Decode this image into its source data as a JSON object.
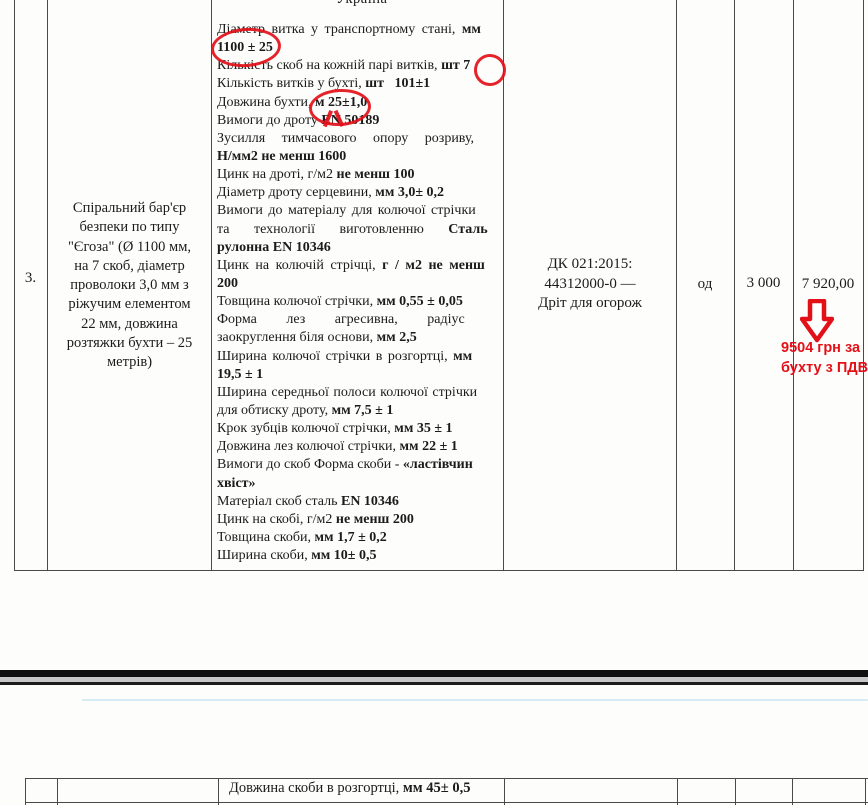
{
  "document": {
    "partial_top_word": "Україна",
    "row": {
      "number": "3.",
      "item_name_lines": [
        "Спіральний бар'єр",
        "безпеки по типу",
        "\"Єгоза\" (Ø 1100 мм,",
        "на 7 скоб, діаметр",
        "проволоки 3,0 мм з",
        "ріжучим елементом",
        "22 мм, довжина",
        "розтяжки бухти – 25",
        "метрів)"
      ],
      "spec_lines": [
        {
          "segs": [
            {
              "t": "Діаметр витка у транспортному стані, ",
              "b": false
            },
            {
              "t": "мм",
              "b": true
            }
          ],
          "ws": 3
        },
        {
          "segs": [
            {
              "t": "1100 ± 25",
              "b": true
            }
          ]
        },
        {
          "segs": [
            {
              "t": "Кількість скоб на кожній парі витків, ",
              "b": false
            },
            {
              "t": "шт 7",
              "b": true
            }
          ]
        },
        {
          "segs": [
            {
              "t": "Кількість витків у бухті, ",
              "b": false
            },
            {
              "t": "шт   101±1",
              "b": true
            }
          ]
        },
        {
          "segs": [
            {
              "t": "Довжина бухти, ",
              "b": false
            },
            {
              "t": "м 25±1,0",
              "b": true
            }
          ]
        },
        {
          "segs": [
            {
              "t": "Вимоги до дроту ",
              "b": false
            },
            {
              "t": "EN 50189",
              "b": true
            }
          ]
        },
        {
          "segs": [
            {
              "t": "Зусилля тимчасового опору розриву,",
              "b": false
            }
          ],
          "ws": 13
        },
        {
          "segs": [
            {
              "t": "Н/мм2 не менш 1600",
              "b": true
            }
          ]
        },
        {
          "segs": [
            {
              "t": "Цинк на дроті, г/м2 ",
              "b": false
            },
            {
              "t": "не менш 100",
              "b": true
            }
          ]
        },
        {
          "segs": [
            {
              "t": "Діаметр дроту серцевини, ",
              "b": false
            },
            {
              "t": "мм 3,0± 0,2",
              "b": true
            }
          ]
        },
        {
          "segs": [
            {
              "t": "Вимоги до матеріалу для колючої стрічки",
              "b": false
            }
          ],
          "ws": 2
        },
        {
          "segs": [
            {
              "t": "та технології виготовленню ",
              "b": false
            },
            {
              "t": "Сталь",
              "b": true
            }
          ],
          "ws": 21
        },
        {
          "segs": [
            {
              "t": "рулонна EN 10346",
              "b": true
            }
          ]
        },
        {
          "segs": [
            {
              "t": "Цинк на колючій стрічці, ",
              "b": false
            },
            {
              "t": "г / м2 не менш",
              "b": true
            }
          ],
          "ws": 3
        },
        {
          "segs": [
            {
              "t": "200",
              "b": true
            }
          ]
        },
        {
          "segs": [
            {
              "t": "Товщина колючої стрічки, ",
              "b": false
            },
            {
              "t": "мм 0,55 ± 0,05",
              "b": true
            }
          ]
        },
        {
          "segs": [
            {
              "t": "Форма лез агресивна, радіус",
              "b": false
            }
          ],
          "ws": 26
        },
        {
          "segs": [
            {
              "t": "заокруглення біля основи, ",
              "b": false
            },
            {
              "t": "мм 2,5",
              "b": true
            }
          ]
        },
        {
          "segs": [
            {
              "t": "Ширина колючої стрічки в розгортці, ",
              "b": false
            },
            {
              "t": "мм",
              "b": true
            }
          ],
          "ws": 2
        },
        {
          "segs": [
            {
              "t": "19,5 ± 1",
              "b": true
            }
          ]
        },
        {
          "segs": [
            {
              "t": "Ширина середньої полоси колючої стрічки",
              "b": false
            }
          ],
          "ws": 1
        },
        {
          "segs": [
            {
              "t": "для обтиску дроту, ",
              "b": false
            },
            {
              "t": "мм 7,5 ± 1",
              "b": true
            }
          ]
        },
        {
          "segs": [
            {
              "t": "Крок зубців колючої стрічки, ",
              "b": false
            },
            {
              "t": "мм 35 ± 1",
              "b": true
            }
          ]
        },
        {
          "segs": [
            {
              "t": "Довжина лез колючої стрічки, ",
              "b": false
            },
            {
              "t": "мм 22 ± 1",
              "b": true
            }
          ]
        },
        {
          "segs": [
            {
              "t": "Вимоги до скоб Форма скоби - ",
              "b": false
            },
            {
              "t": "«ластівчин",
              "b": true
            }
          ]
        },
        {
          "segs": [
            {
              "t": "хвіст»",
              "b": true
            }
          ]
        },
        {
          "segs": [
            {
              "t": "Матеріал скоб сталь ",
              "b": false
            },
            {
              "t": "EN 10346",
              "b": true
            }
          ]
        },
        {
          "segs": [
            {
              "t": "Цинк на скобі, г/м2 ",
              "b": false
            },
            {
              "t": "не менш 200",
              "b": true
            }
          ]
        },
        {
          "segs": [
            {
              "t": "Товщина скоби, ",
              "b": false
            },
            {
              "t": "мм 1,7 ± 0,2",
              "b": true
            }
          ]
        },
        {
          "segs": [
            {
              "t": "Ширина скоби, ",
              "b": false
            },
            {
              "t": "мм 10± 0,5",
              "b": true
            }
          ]
        }
      ],
      "classification_lines": [
        "ДК 021:2015:",
        "44312000-0 —",
        "Дріт для огорож"
      ],
      "unit": "од",
      "quantity": "3 000",
      "price": "7 920,00"
    },
    "annotations": {
      "red_color": "#e31018",
      "circled_values": [
        "1100 ±",
        "7",
        "м 25"
      ],
      "arrow_direction": "down",
      "note_lines": [
        "9504 грн за",
        "бухту з ПДВ"
      ]
    },
    "next_page_row": {
      "spec_segments": [
        {
          "t": "Довжина скоби в розгортці, ",
          "b": false
        },
        {
          "t": "мм 45± 0,5",
          "b": true
        }
      ]
    }
  }
}
